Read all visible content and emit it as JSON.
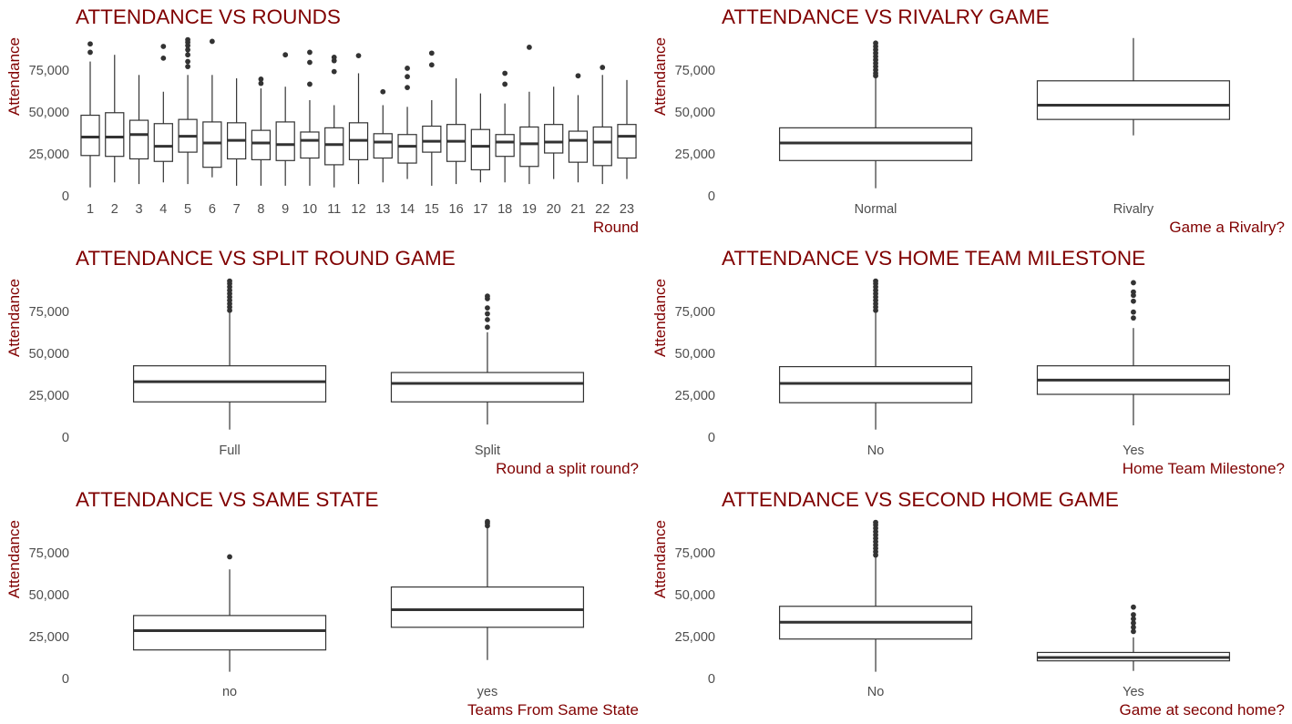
{
  "chart_data": [
    {
      "type": "boxplot",
      "title": "ATTENDANCE VS ROUNDS",
      "xlabel": "Round",
      "ylabel": "Attendance",
      "ylim": [
        0,
        95000
      ],
      "yticks": [
        0,
        25000,
        50000,
        75000
      ],
      "ytick_labels": [
        "0",
        "25,000",
        "50,000",
        "75,000"
      ],
      "grid": false,
      "categories": [
        "1",
        "2",
        "3",
        "4",
        "5",
        "6",
        "7",
        "8",
        "9",
        "10",
        "11",
        "12",
        "13",
        "14",
        "15",
        "16",
        "17",
        "18",
        "19",
        "20",
        "21",
        "22",
        "23"
      ],
      "boxes": [
        {
          "q1": 24000,
          "median": 35000,
          "q3": 48000,
          "whisker_low": 5000,
          "whisker_high": 80000,
          "outliers": [
            85500,
            90500
          ]
        },
        {
          "q1": 23500,
          "median": 35000,
          "q3": 49500,
          "whisker_low": 8000,
          "whisker_high": 84000,
          "outliers": []
        },
        {
          "q1": 22000,
          "median": 36500,
          "q3": 45000,
          "whisker_low": 7000,
          "whisker_high": 72000,
          "outliers": []
        },
        {
          "q1": 20500,
          "median": 29500,
          "q3": 43000,
          "whisker_low": 8000,
          "whisker_high": 62000,
          "outliers": [
            82000,
            89000
          ]
        },
        {
          "q1": 26000,
          "median": 35500,
          "q3": 45500,
          "whisker_low": 7000,
          "whisker_high": 72000,
          "outliers": [
            77000,
            80000,
            84000,
            87000,
            89500,
            91500,
            93000
          ]
        },
        {
          "q1": 17000,
          "median": 31500,
          "q3": 44000,
          "whisker_low": 11000,
          "whisker_high": 72000,
          "outliers": [
            92000
          ]
        },
        {
          "q1": 22000,
          "median": 33000,
          "q3": 43500,
          "whisker_low": 6000,
          "whisker_high": 70000,
          "outliers": []
        },
        {
          "q1": 21500,
          "median": 31500,
          "q3": 39000,
          "whisker_low": 6000,
          "whisker_high": 64000,
          "outliers": [
            67000,
            69500
          ]
        },
        {
          "q1": 21000,
          "median": 30500,
          "q3": 44000,
          "whisker_low": 6000,
          "whisker_high": 65000,
          "outliers": [
            84000
          ]
        },
        {
          "q1": 22500,
          "median": 33000,
          "q3": 38000,
          "whisker_low": 6000,
          "whisker_high": 57000,
          "outliers": [
            66500,
            79500,
            85500
          ]
        },
        {
          "q1": 18500,
          "median": 30500,
          "q3": 40500,
          "whisker_low": 5000,
          "whisker_high": 54000,
          "outliers": [
            74000,
            80500,
            82500
          ]
        },
        {
          "q1": 21500,
          "median": 33000,
          "q3": 43500,
          "whisker_low": 7000,
          "whisker_high": 73000,
          "outliers": [
            83500
          ]
        },
        {
          "q1": 22500,
          "median": 32000,
          "q3": 37000,
          "whisker_low": 8000,
          "whisker_high": 54000,
          "outliers": [
            62000
          ]
        },
        {
          "q1": 19500,
          "median": 29500,
          "q3": 36500,
          "whisker_low": 10000,
          "whisker_high": 53000,
          "outliers": [
            64500,
            71000,
            76000
          ]
        },
        {
          "q1": 26000,
          "median": 32500,
          "q3": 41500,
          "whisker_low": 6000,
          "whisker_high": 57000,
          "outliers": [
            78000,
            85000
          ]
        },
        {
          "q1": 20500,
          "median": 32500,
          "q3": 42500,
          "whisker_low": 7000,
          "whisker_high": 70000,
          "outliers": []
        },
        {
          "q1": 15500,
          "median": 29500,
          "q3": 39500,
          "whisker_low": 8000,
          "whisker_high": 61000,
          "outliers": []
        },
        {
          "q1": 23500,
          "median": 32000,
          "q3": 36500,
          "whisker_low": 8000,
          "whisker_high": 55000,
          "outliers": [
            66500,
            73000
          ]
        },
        {
          "q1": 17500,
          "median": 31000,
          "q3": 41000,
          "whisker_low": 7000,
          "whisker_high": 62000,
          "outliers": [
            88500
          ]
        },
        {
          "q1": 25500,
          "median": 32000,
          "q3": 42500,
          "whisker_low": 10000,
          "whisker_high": 65000,
          "outliers": []
        },
        {
          "q1": 20000,
          "median": 33000,
          "q3": 38500,
          "whisker_low": 8000,
          "whisker_high": 60000,
          "outliers": [
            71500
          ]
        },
        {
          "q1": 18000,
          "median": 32000,
          "q3": 41000,
          "whisker_low": 7000,
          "whisker_high": 72000,
          "outliers": [
            76500
          ]
        },
        {
          "q1": 22500,
          "median": 35500,
          "q3": 42500,
          "whisker_low": 10000,
          "whisker_high": 69000,
          "outliers": []
        }
      ]
    },
    {
      "type": "boxplot",
      "title": "ATTENDANCE VS RIVALRY GAME",
      "xlabel": "Game a Rivalry?",
      "ylabel": "Attendance",
      "ylim": [
        0,
        95000
      ],
      "yticks": [
        0,
        25000,
        50000,
        75000
      ],
      "ytick_labels": [
        "0",
        "25,000",
        "50,000",
        "75,000"
      ],
      "grid": false,
      "categories": [
        "Normal",
        "Rivalry"
      ],
      "boxes": [
        {
          "q1": 21000,
          "median": 31500,
          "q3": 40500,
          "whisker_low": 4500,
          "whisker_high": 70000,
          "outliers": [
            71500,
            73000,
            75000,
            77000,
            79000,
            81000,
            83000,
            85000,
            87000,
            89000,
            91000
          ]
        },
        {
          "q1": 45500,
          "median": 54000,
          "q3": 68500,
          "whisker_low": 36000,
          "whisker_high": 94000,
          "outliers": []
        }
      ]
    },
    {
      "type": "boxplot",
      "title": "ATTENDANCE VS SPLIT ROUND GAME",
      "xlabel": "Round a split round?",
      "ylabel": "Attendance",
      "ylim": [
        0,
        95000
      ],
      "yticks": [
        0,
        25000,
        50000,
        75000
      ],
      "ytick_labels": [
        "0",
        "25,000",
        "50,000",
        "75,000"
      ],
      "grid": false,
      "categories": [
        "Full",
        "Split"
      ],
      "boxes": [
        {
          "q1": 21000,
          "median": 33000,
          "q3": 42500,
          "whisker_low": 4500,
          "whisker_high": 74000,
          "outliers": [
            75500,
            77500,
            79500,
            81500,
            83500,
            85500,
            87500,
            89500,
            91500,
            93000
          ]
        },
        {
          "q1": 21000,
          "median": 32000,
          "q3": 38500,
          "whisker_low": 7500,
          "whisker_high": 62500,
          "outliers": [
            65500,
            70000,
            73500,
            77000,
            82500,
            84000
          ]
        }
      ]
    },
    {
      "type": "boxplot",
      "title": "ATTENDANCE VS HOME TEAM MILESTONE",
      "xlabel": "Home Team Milestone?",
      "ylabel": "Attendance",
      "ylim": [
        0,
        95000
      ],
      "yticks": [
        0,
        25000,
        50000,
        75000
      ],
      "ytick_labels": [
        "0",
        "25,000",
        "50,000",
        "75,000"
      ],
      "grid": false,
      "categories": [
        "No",
        "Yes"
      ],
      "boxes": [
        {
          "q1": 20500,
          "median": 32000,
          "q3": 42000,
          "whisker_low": 4500,
          "whisker_high": 74000,
          "outliers": [
            75500,
            77500,
            79500,
            81500,
            83500,
            85500,
            87500,
            89500,
            91500,
            93000
          ]
        },
        {
          "q1": 25500,
          "median": 34000,
          "q3": 42500,
          "whisker_low": 7000,
          "whisker_high": 65000,
          "outliers": [
            71000,
            74500,
            81000,
            84500,
            86500,
            92000
          ]
        }
      ]
    },
    {
      "type": "boxplot",
      "title": "ATTENDANCE VS SAME STATE",
      "xlabel": "Teams From Same State",
      "ylabel": "Attendance",
      "ylim": [
        0,
        95000
      ],
      "yticks": [
        0,
        25000,
        50000,
        75000
      ],
      "ytick_labels": [
        "0",
        "25,000",
        "50,000",
        "75,000"
      ],
      "grid": false,
      "categories": [
        "no",
        "yes"
      ],
      "boxes": [
        {
          "q1": 17000,
          "median": 28500,
          "q3": 37500,
          "whisker_low": 4000,
          "whisker_high": 65000,
          "outliers": [
            72500
          ]
        },
        {
          "q1": 30500,
          "median": 41000,
          "q3": 54500,
          "whisker_low": 11000,
          "whisker_high": 90000,
          "outliers": [
            91000,
            92500,
            93500
          ]
        }
      ]
    },
    {
      "type": "boxplot",
      "title": "ATTENDANCE VS SECOND HOME GAME",
      "xlabel": "Game at second home?",
      "ylabel": "Attendance",
      "ylim": [
        0,
        95000
      ],
      "yticks": [
        0,
        25000,
        50000,
        75000
      ],
      "ytick_labels": [
        "0",
        "25,000",
        "50,000",
        "75,000"
      ],
      "grid": false,
      "categories": [
        "No",
        "Yes"
      ],
      "boxes": [
        {
          "q1": 23500,
          "median": 33500,
          "q3": 43000,
          "whisker_low": 4000,
          "whisker_high": 72000,
          "outliers": [
            73500,
            75500,
            77500,
            79500,
            81500,
            83500,
            85500,
            87500,
            89500,
            91500,
            93000
          ]
        },
        {
          "q1": 10500,
          "median": 12500,
          "q3": 15500,
          "whisker_low": 4500,
          "whisker_high": 24500,
          "outliers": [
            28000,
            30500,
            33000,
            35500,
            38000,
            42500
          ]
        }
      ]
    }
  ]
}
